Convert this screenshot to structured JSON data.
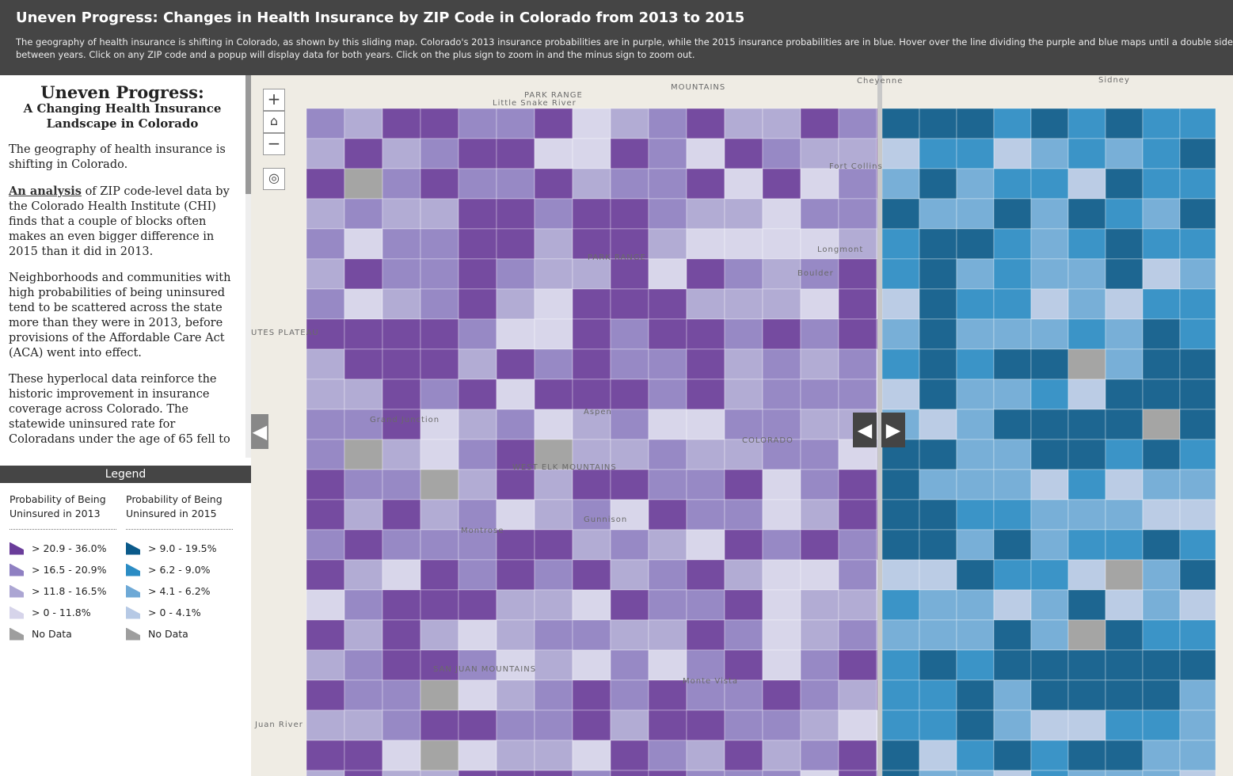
{
  "header": {
    "title": "Uneven Progress: Changes in Health Insurance by ZIP Code in Colorado from 2013 to 2015",
    "subtitle_lines": [
      "The geography of health insurance is shifting in Colorado, as shown by this sliding map. Colorado's 2013 insurance probabilities are in purple, while the 2015 insurance probabilities are in blue. Hover over the line dividing the purple and blue maps until a double sided arrow appears. I",
      "between years. Click on any ZIP code and a popup will display data for both years. Click on the plus sign to zoom in and the minus sign to zoom out."
    ]
  },
  "sidebar": {
    "title": "Uneven Progress:",
    "subtitle": "A Changing Health Insurance Landscape in Colorado",
    "paragraphs": [
      {
        "text": "The geography of health insurance is shifting in Colorado."
      },
      {
        "link": "An analysis",
        "text": "of ZIP code-level data by the Colorado Health Institute (CHI) finds that a couple of blocks often makes an even bigger difference in 2015 than it did in 2013."
      },
      {
        "text": "Neighborhoods and communities with high probabilities of being uninsured tend to be scattered across the state more than they were in 2013, before provisions of the Affordable Care Act (ACA) went into effect."
      },
      {
        "text": "These hyperlocal data reinforce the historic improvement in insurance coverage across Colorado. The statewide uninsured rate for Coloradans under the age of 65 fell to"
      }
    ]
  },
  "legend": {
    "title": "Legend",
    "columns": [
      {
        "heading": "Probability of Being Uninsured in 2013",
        "items": [
          {
            "label": "> 20.9 - 36.0%",
            "color": "#6a3d9a"
          },
          {
            "label": "> 16.5 - 20.9%",
            "color": "#8f80c2"
          },
          {
            "label": "> 11.8 - 16.5%",
            "color": "#aca6d3"
          },
          {
            "label": "> 0 - 11.8%",
            "color": "#d6d4ea"
          },
          {
            "label": "No Data",
            "color": "#9e9e9e"
          }
        ]
      },
      {
        "heading": "Probability of Being Uninsured in 2015",
        "items": [
          {
            "label": "> 9.0 - 19.5%",
            "color": "#0b5a8a"
          },
          {
            "label": "> 6.2 - 9.0%",
            "color": "#2b8cc4"
          },
          {
            "label": "> 4.1 - 6.2%",
            "color": "#6ea9d6"
          },
          {
            "label": "> 0 - 4.1%",
            "color": "#b6c9e5"
          },
          {
            "label": "No Data",
            "color": "#9e9e9e"
          }
        ]
      }
    ]
  },
  "map": {
    "labels": [
      "Cheyenne",
      "Sidney",
      "PARK RANGE",
      "Little Snake River",
      "MOUNTAINS",
      "PARK RANGE",
      "UTES PLATEAU",
      "COLORADO",
      "Grand Junction",
      "Montrose",
      "WEST ELK MOUNTAINS",
      "Gunnison",
      "Aspen",
      "Longmont",
      "Boulder",
      "Fort Collins",
      "Monte Vista",
      "SAN JUAN MOUNTAINS",
      "Juan River"
    ]
  }
}
